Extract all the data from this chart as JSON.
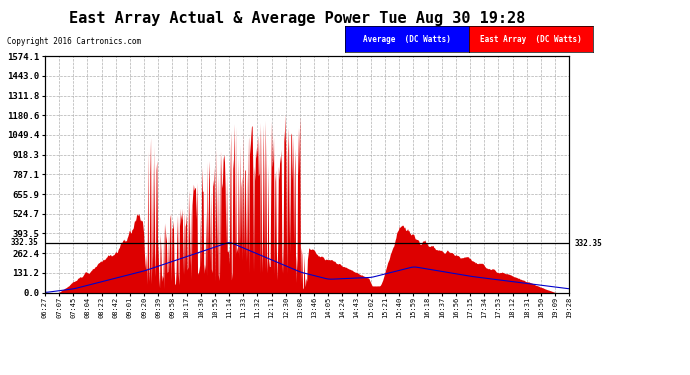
{
  "title": "East Array Actual & Average Power Tue Aug 30 19:28",
  "copyright": "Copyright 2016 Cartronics.com",
  "legend_avg": "Average  (DC Watts)",
  "legend_east": "East Array  (DC Watts)",
  "ymin": 0.0,
  "ymax": 1574.1,
  "yticks": [
    0.0,
    131.2,
    262.4,
    393.5,
    524.7,
    655.9,
    787.1,
    918.3,
    1049.4,
    1180.6,
    1311.8,
    1443.0,
    1574.1
  ],
  "hline_value": 332.35,
  "bg_color": "#ffffff",
  "plot_bg_color": "#ffffff",
  "grid_color": "#b0b0b0",
  "fill_color": "#dd0000",
  "avg_line_color": "#0000cc",
  "title_fontsize": 12,
  "xtick_labels": [
    "06:27",
    "07:07",
    "07:45",
    "08:04",
    "08:23",
    "08:42",
    "09:01",
    "09:20",
    "09:39",
    "09:58",
    "10:17",
    "10:36",
    "10:55",
    "11:14",
    "11:33",
    "11:32",
    "12:11",
    "12:30",
    "13:08",
    "13:46",
    "14:05",
    "14:24",
    "14:43",
    "15:02",
    "15:21",
    "15:40",
    "15:59",
    "16:18",
    "16:37",
    "16:56",
    "17:15",
    "17:34",
    "17:53",
    "18:12",
    "18:31",
    "18:50",
    "19:09",
    "19:28"
  ]
}
